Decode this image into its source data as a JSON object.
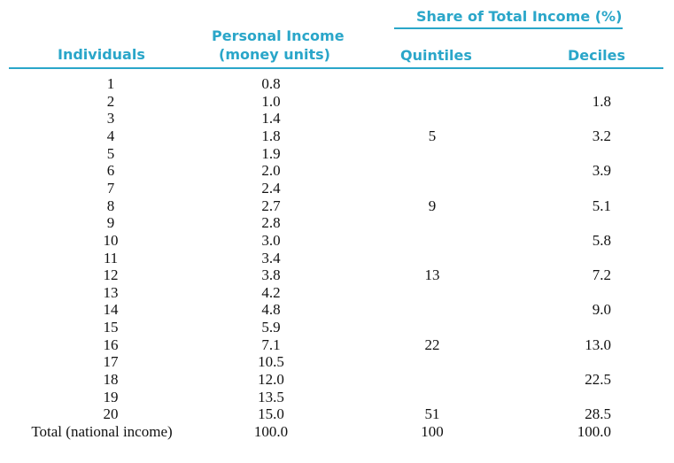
{
  "header": {
    "share_group": "Share of Total Income (%)",
    "individuals": "Individuals",
    "income_line1": "Personal Income",
    "income_line2": "(money units)",
    "quintiles": "Quintiles",
    "deciles": "Deciles"
  },
  "colors": {
    "accent": "#2aa6c9",
    "text": "#111111"
  },
  "rows": [
    {
      "ind": "1",
      "inc": "0.8",
      "qui": "",
      "dec": ""
    },
    {
      "ind": "2",
      "inc": "1.0",
      "qui": "",
      "dec": "1.8"
    },
    {
      "ind": "3",
      "inc": "1.4",
      "qui": "",
      "dec": ""
    },
    {
      "ind": "4",
      "inc": "1.8",
      "qui": "5",
      "dec": "3.2"
    },
    {
      "ind": "5",
      "inc": "1.9",
      "qui": "",
      "dec": ""
    },
    {
      "ind": "6",
      "inc": "2.0",
      "qui": "",
      "dec": "3.9"
    },
    {
      "ind": "7",
      "inc": "2.4",
      "qui": "",
      "dec": ""
    },
    {
      "ind": "8",
      "inc": "2.7",
      "qui": "9",
      "dec": "5.1"
    },
    {
      "ind": "9",
      "inc": "2.8",
      "qui": "",
      "dec": ""
    },
    {
      "ind": "10",
      "inc": "3.0",
      "qui": "",
      "dec": "5.8"
    },
    {
      "ind": "11",
      "inc": "3.4",
      "qui": "",
      "dec": ""
    },
    {
      "ind": "12",
      "inc": "3.8",
      "qui": "13",
      "dec": "7.2"
    },
    {
      "ind": "13",
      "inc": "4.2",
      "qui": "",
      "dec": ""
    },
    {
      "ind": "14",
      "inc": "4.8",
      "qui": "",
      "dec": "9.0"
    },
    {
      "ind": "15",
      "inc": "5.9",
      "qui": "",
      "dec": ""
    },
    {
      "ind": "16",
      "inc": "7.1",
      "qui": "22",
      "dec": "13.0"
    },
    {
      "ind": "17",
      "inc": "10.5",
      "qui": "",
      "dec": ""
    },
    {
      "ind": "18",
      "inc": "12.0",
      "qui": "",
      "dec": "22.5"
    },
    {
      "ind": "19",
      "inc": "13.5",
      "qui": "",
      "dec": ""
    },
    {
      "ind": "20",
      "inc": "15.0",
      "qui": "51",
      "dec": "28.5"
    }
  ],
  "total": {
    "ind": "Total (national income)",
    "inc": "100.0",
    "qui": "100",
    "dec": "100.0"
  }
}
